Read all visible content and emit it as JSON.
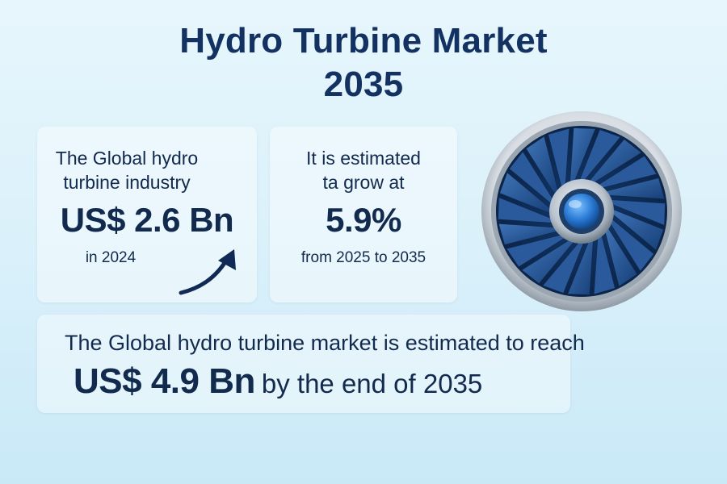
{
  "title": {
    "line1": "Hydro Turbine Market",
    "line2": "2035"
  },
  "card_market_size": {
    "line1": "The Global hydro",
    "line2": "turbine industry",
    "value": "US$ 2.6 Bn",
    "year": "in 2024"
  },
  "card_growth": {
    "line1": "It is estimated",
    "line2": "ta grow at",
    "value": "5.9%",
    "period": "from 2025 to 2035"
  },
  "card_forecast": {
    "line1": "The Global hydro turbine market is estimated to reach",
    "value": "US$ 4.9 Bn",
    "rest": "by the end of 2035"
  },
  "colors": {
    "background": "#dcf1fa",
    "text": "#122a4d",
    "title": "#133262",
    "turbine_blade": "#1d4a86",
    "turbine_hub": "#2a7bd6"
  },
  "icons": {
    "growth": "curved-up-arrow-icon",
    "turbine": "turbine-icon"
  }
}
